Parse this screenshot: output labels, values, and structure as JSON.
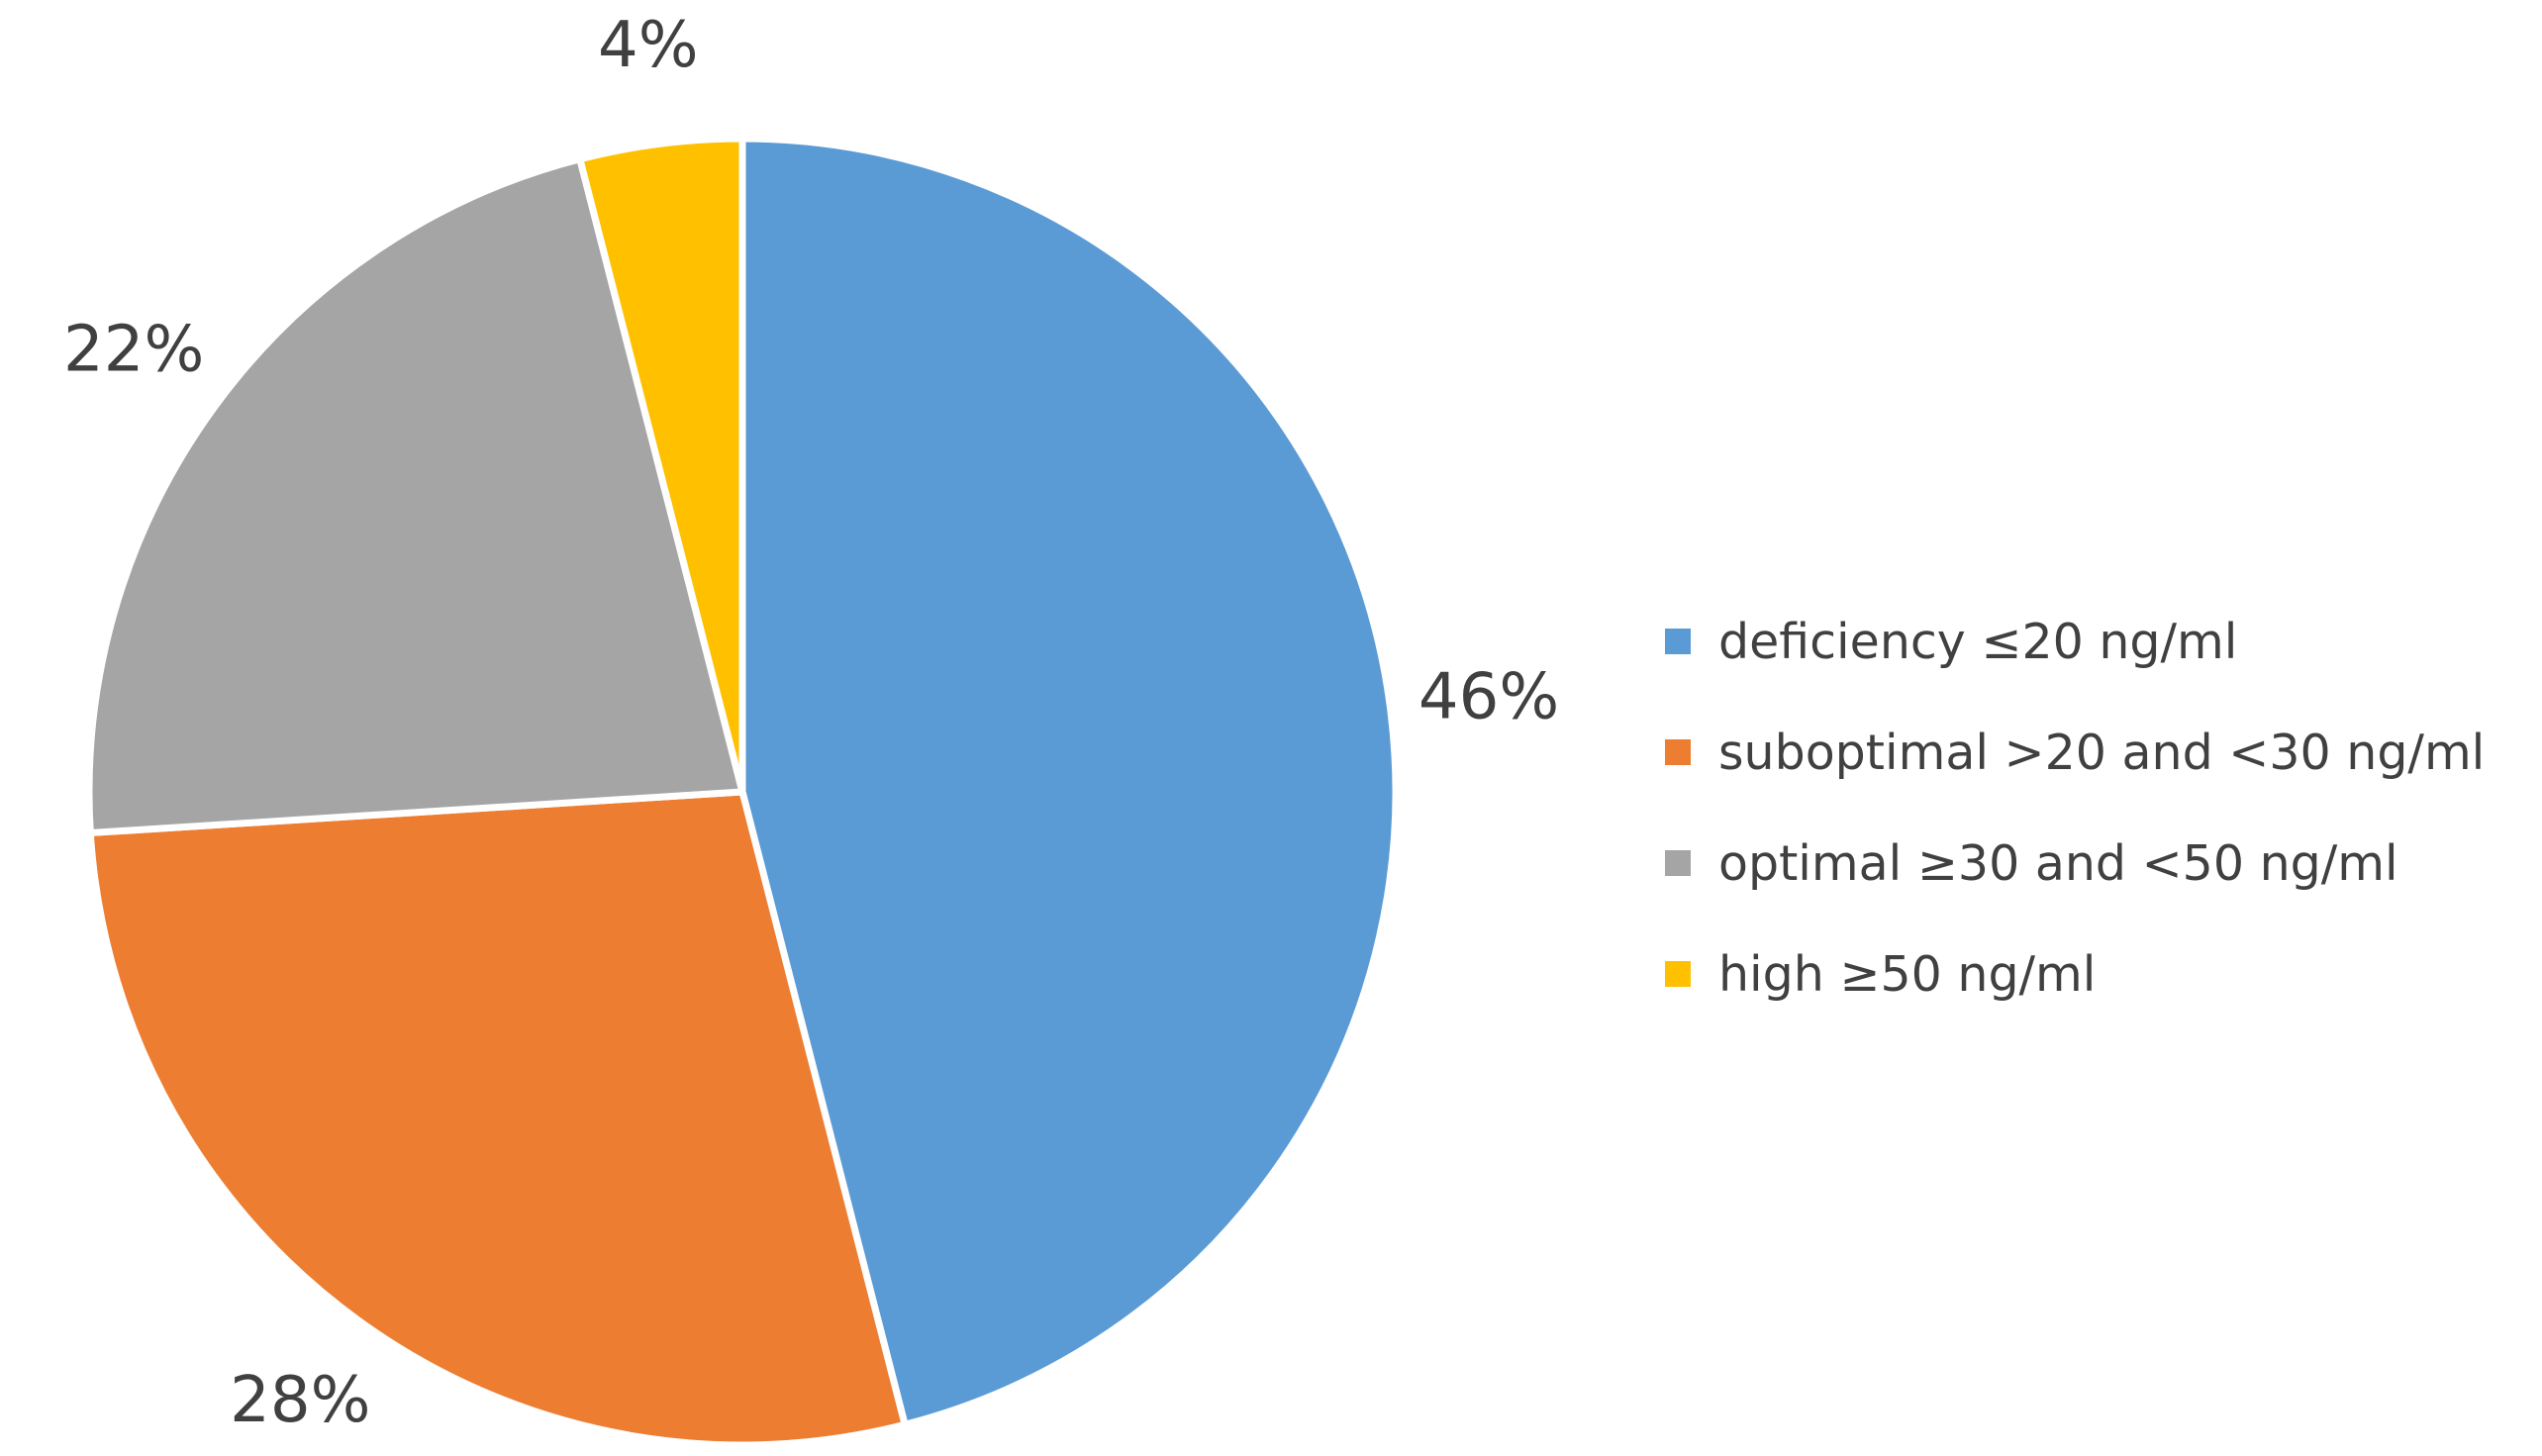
{
  "chart_data": {
    "type": "pie",
    "title": "",
    "categories": [
      "deficiency ≤20 ng/ml",
      "suboptimal >20 and <30 ng/ml",
      "optimal ≥30 and <50 ng/ml",
      "high ≥50 ng/ml"
    ],
    "values": [
      46,
      28,
      22,
      4
    ],
    "data_labels": [
      "46%",
      "28%",
      "22%",
      "4%"
    ],
    "colors": [
      "#5B9BD5",
      "#ED7D31",
      "#A5A5A5",
      "#FFC000"
    ],
    "start_angle_deg": 0,
    "direction": "clockwise",
    "legend": {
      "position": "right",
      "items": [
        {
          "label": "deficiency ≤20 ng/ml",
          "color": "#5B9BD5"
        },
        {
          "label": "suboptimal >20 and <30 ng/ml",
          "color": "#ED7D31"
        },
        {
          "label": "optimal ≥30 and <50 ng/ml",
          "color": "#A5A5A5"
        },
        {
          "label": "high ≥50 ng/ml",
          "color": "#FFC000"
        }
      ]
    }
  }
}
